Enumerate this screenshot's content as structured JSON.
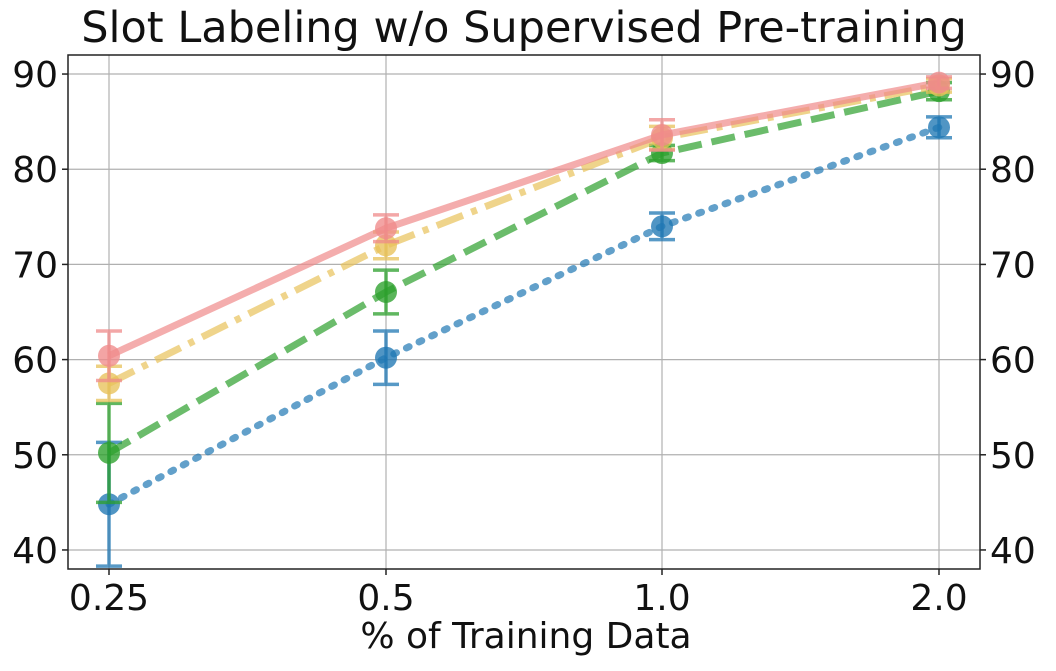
{
  "chart_data": {
    "type": "line",
    "title": "Slot Labeling w/o Supervised Pre-training",
    "xlabel": "% of Training Data",
    "ylabel": "",
    "categories": [
      "0.25",
      "0.5",
      "1.0",
      "2.0"
    ],
    "ylim": [
      38,
      92
    ],
    "yticks": [
      40,
      50,
      60,
      70,
      80,
      90
    ],
    "ytick_labels": [
      "40",
      "50",
      "60",
      "70",
      "80",
      "90"
    ],
    "y_ticks_mirrored_right": true,
    "grid": true,
    "legend": "none",
    "series": [
      {
        "color": "#1f77b4",
        "dash": "dotted",
        "values": [
          44.8,
          60.2,
          74.0,
          84.4
        ],
        "error": [
          6.5,
          2.8,
          1.4,
          1.1
        ]
      },
      {
        "color": "#2ca02c",
        "dash": "dashed",
        "values": [
          50.2,
          67.1,
          81.7,
          88.2
        ],
        "error": [
          5.2,
          2.3,
          0.8,
          0.9
        ]
      },
      {
        "color": "#e8c25a",
        "dash": "dashdot",
        "values": [
          57.5,
          72.0,
          83.3,
          88.8
        ],
        "error": [
          1.8,
          1.4,
          1.2,
          0.7
        ]
      },
      {
        "color": "#ef8a8a",
        "dash": "solid",
        "values": [
          60.4,
          73.8,
          83.6,
          89.1
        ],
        "error": [
          2.6,
          1.4,
          1.6,
          0.6
        ]
      }
    ]
  }
}
